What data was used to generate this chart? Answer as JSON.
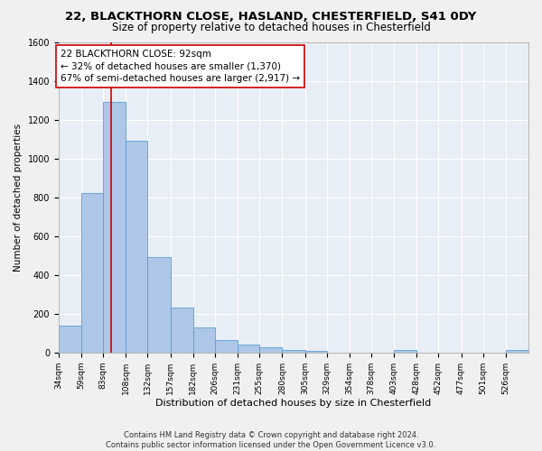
{
  "title_line1": "22, BLACKTHORN CLOSE, HASLAND, CHESTERFIELD, S41 0DY",
  "title_line2": "Size of property relative to detached houses in Chesterfield",
  "xlabel": "Distribution of detached houses by size in Chesterfield",
  "ylabel": "Number of detached properties",
  "footnote1": "Contains HM Land Registry data © Crown copyright and database right 2024.",
  "footnote2": "Contains public sector information licensed under the Open Government Licence v3.0.",
  "annotation_line1": "22 BLACKTHORN CLOSE: 92sqm",
  "annotation_line2": "← 32% of detached houses are smaller (1,370)",
  "annotation_line3": "67% of semi-detached houses are larger (2,917) →",
  "property_size": 92,
  "bin_edges": [
    34,
    59,
    83,
    108,
    132,
    157,
    182,
    206,
    231,
    255,
    280,
    305,
    329,
    354,
    378,
    403,
    428,
    452,
    477,
    501,
    526
  ],
  "bar_heights": [
    140,
    820,
    1290,
    1090,
    490,
    230,
    130,
    65,
    40,
    25,
    15,
    10,
    0,
    0,
    0,
    15,
    0,
    0,
    0,
    0,
    15
  ],
  "bar_color": "#aec6e8",
  "bar_edge_color": "#5a9fd4",
  "vline_color": "#cc0000",
  "vline_x": 92,
  "ylim": [
    0,
    1600
  ],
  "background_color": "#e8eef6",
  "grid_color": "#ffffff",
  "fig_facecolor": "#f0f0f0",
  "annotation_box_facecolor": "#ffffff",
  "annotation_box_edge": "#cc0000",
  "title1_fontsize": 9.5,
  "title2_fontsize": 8.5,
  "xlabel_fontsize": 8,
  "ylabel_fontsize": 7.5,
  "tick_fontsize": 6.5,
  "annotation_fontsize": 7.5,
  "footnote_fontsize": 6
}
